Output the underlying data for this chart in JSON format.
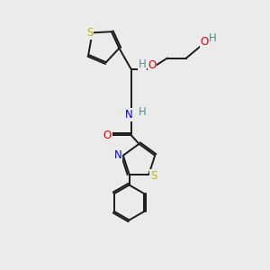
{
  "bg_color": "#ebebeb",
  "bond_color": "#1a1a1a",
  "atom_colors": {
    "S": "#c8b400",
    "N": "#0000ee",
    "O": "#dd0000",
    "H": "#4a9090",
    "C": "#1a1a1a"
  },
  "font_size": 8.5,
  "lw": 1.4
}
